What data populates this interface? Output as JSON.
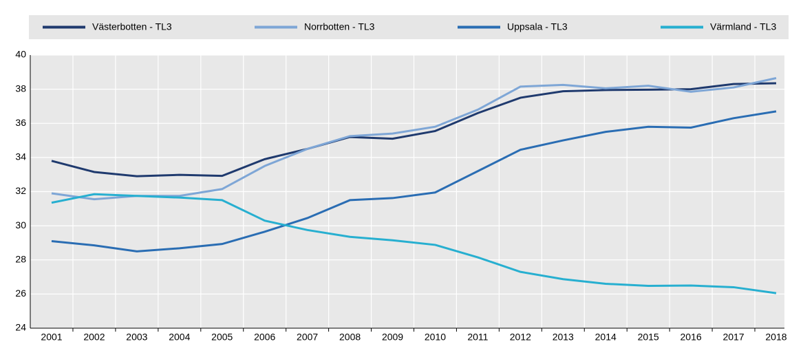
{
  "chart_data": {
    "type": "line",
    "categories": [
      "2001",
      "2002",
      "2003",
      "2004",
      "2005",
      "2006",
      "2007",
      "2008",
      "2009",
      "2010",
      "2011",
      "2012",
      "2013",
      "2014",
      "2015",
      "2016",
      "2017",
      "2018"
    ],
    "series": [
      {
        "name": "Västerbotten - TL3",
        "color": "#1f3a6e",
        "values": [
          33.8,
          33.15,
          32.9,
          32.98,
          32.92,
          33.9,
          34.5,
          35.2,
          35.1,
          35.55,
          36.6,
          37.5,
          37.88,
          37.95,
          37.97,
          38.0,
          38.3,
          38.35
        ]
      },
      {
        "name": "Norrbotten - TL3",
        "color": "#7ea6d6",
        "values": [
          31.9,
          31.55,
          31.75,
          31.75,
          32.15,
          33.5,
          34.5,
          35.25,
          35.4,
          35.8,
          36.8,
          38.15,
          38.25,
          38.05,
          38.2,
          37.85,
          38.1,
          38.65
        ]
      },
      {
        "name": "Uppsala - TL3",
        "color": "#2a6db3",
        "values": [
          29.1,
          28.85,
          28.5,
          28.68,
          28.93,
          29.65,
          30.45,
          31.5,
          31.62,
          31.95,
          33.2,
          34.45,
          35.0,
          35.5,
          35.8,
          35.75,
          36.3,
          36.7
        ]
      },
      {
        "name": "Värmland - TL3",
        "color": "#27afd0",
        "values": [
          31.35,
          31.85,
          31.75,
          31.65,
          31.5,
          30.3,
          29.75,
          29.35,
          29.15,
          28.88,
          28.15,
          27.3,
          26.87,
          26.6,
          26.48,
          26.5,
          26.4,
          26.05
        ]
      }
    ],
    "ylim": [
      24,
      40
    ],
    "yticks": [
      24,
      26,
      28,
      30,
      32,
      34,
      36,
      38,
      40
    ],
    "grid": true
  }
}
